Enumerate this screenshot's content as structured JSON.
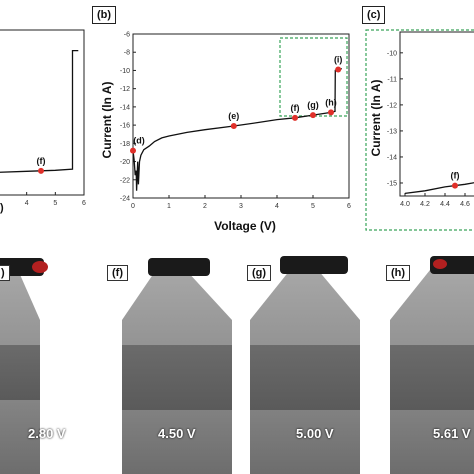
{
  "figure": {
    "panel_labels": [
      "(b)",
      "(c)"
    ],
    "micrograph_labels": [
      "(f)",
      "(g)",
      "(h)"
    ],
    "voltages": [
      "2.80 V",
      "4.50 V",
      "5.00 V",
      "5.61 V"
    ],
    "partial_label_left": ")"
  },
  "chart_data": [
    {
      "type": "line",
      "panel": "(a)",
      "xlabel": "",
      "ylabel": "",
      "x_ticks": [
        "4",
        "5",
        "6"
      ],
      "series": [
        {
          "x": [
            3.0,
            4.0,
            5.0,
            5.6,
            5.6,
            5.8
          ],
          "y": [
            -15.9,
            -15.85,
            -15.8,
            -15.75,
            -10.0,
            -10.0
          ]
        }
      ],
      "points": [
        {
          "label": "(f)",
          "x": 4.5,
          "y": -15.83
        }
      ],
      "xlim": [
        3,
        6
      ],
      "ylim": [
        -17,
        -9
      ]
    },
    {
      "type": "line",
      "panel": "(b)",
      "xlabel": "Voltage (V)",
      "ylabel": "Current (ln A)",
      "x_ticks": [
        "0",
        "1",
        "2",
        "3",
        "4",
        "5",
        "6"
      ],
      "y_ticks": [
        "-6",
        "-8",
        "-10",
        "-12",
        "-14",
        "-16",
        "-18",
        "-20",
        "-22",
        "-24"
      ],
      "xlim": [
        0,
        6
      ],
      "ylim": [
        -24,
        -6
      ],
      "series": [
        {
          "x": [
            0,
            0.03,
            0.06,
            0.09,
            0.1,
            0.13,
            0.15,
            0.18,
            0.22,
            0.3,
            0.45,
            0.6,
            0.8,
            1.0,
            1.5,
            2.0,
            2.8,
            3.5,
            4.0,
            4.5,
            5.0,
            5.5,
            5.61,
            5.62,
            5.8
          ],
          "y": [
            -18.8,
            -19.8,
            -21.5,
            -21.0,
            -23.2,
            -20.0,
            -22.5,
            -20.0,
            -19.3,
            -18.7,
            -18.3,
            -17.8,
            -17.4,
            -17.2,
            -16.8,
            -16.5,
            -16.1,
            -15.7,
            -15.4,
            -15.2,
            -14.9,
            -14.6,
            -14.5,
            -10.0,
            -9.8
          ]
        }
      ],
      "points": [
        {
          "label": "(d)",
          "x": 0.0,
          "y": -18.8
        },
        {
          "label": "(e)",
          "x": 2.8,
          "y": -16.1
        },
        {
          "label": "(f)",
          "x": 4.5,
          "y": -15.2
        },
        {
          "label": "(g)",
          "x": 5.0,
          "y": -14.9
        },
        {
          "label": "(h)",
          "x": 5.5,
          "y": -14.6
        },
        {
          "label": "(i)",
          "x": 5.7,
          "y": -9.9
        }
      ]
    },
    {
      "type": "line",
      "panel": "(c)",
      "xlabel": "",
      "ylabel": "Current (ln A)",
      "x_ticks": [
        "4.0",
        "4.2",
        "4.4",
        "4.6"
      ],
      "y_ticks": [
        "-10",
        "-11",
        "-12",
        "-13",
        "-14",
        "-15"
      ],
      "xlim": [
        3.95,
        4.75
      ],
      "ylim": [
        -15.5,
        -9.2
      ],
      "series": [
        {
          "x": [
            4.0,
            4.2,
            4.4,
            4.6,
            4.75
          ],
          "y": [
            -15.4,
            -15.3,
            -15.15,
            -15.05,
            -14.95
          ]
        }
      ],
      "points": [
        {
          "label": "(f)",
          "x": 4.5,
          "y": -15.1
        }
      ]
    }
  ]
}
